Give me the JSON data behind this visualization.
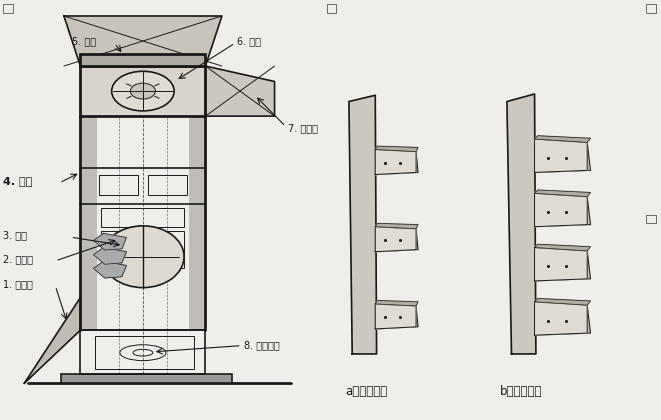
{
  "bg_color": "#f0eeea",
  "line_color": "#1a1a1a",
  "labels": {
    "1": "1. 装料斗",
    "2": "2. 牴引带",
    "3": "3. 料斗",
    "4": "4. 机壳",
    "5": "5. 机头",
    "6": "6. 鼓轮",
    "7": "7. 出料口",
    "8": "8. 张紧装置"
  },
  "caption_a": "a）料斗疏散",
  "caption_b": "b）料斗密接"
}
